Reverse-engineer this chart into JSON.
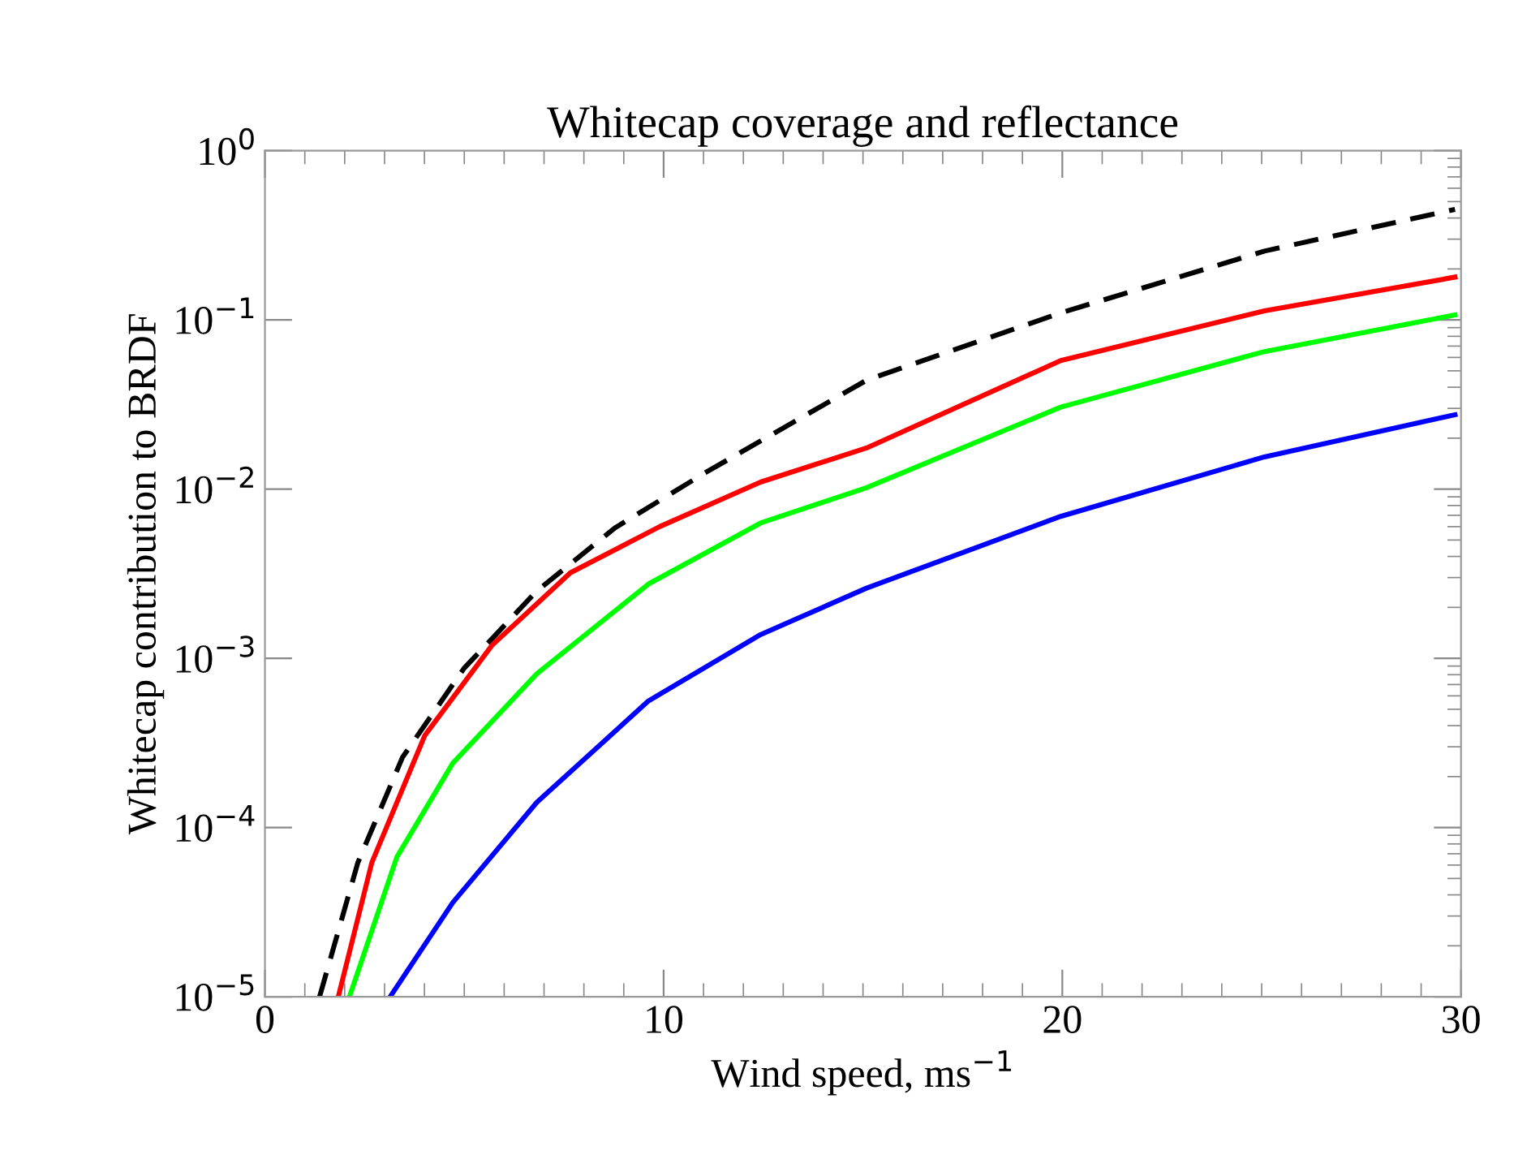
{
  "chart_data": {
    "type": "line",
    "title": "Whitecap coverage and reflectance",
    "xlabel": "Wind speed, ms$^{−1}$",
    "ylabel": "Whitecap contribution to BRDF",
    "log": "y",
    "grid": false,
    "xlim": [
      0,
      30
    ],
    "xticks": [
      0,
      10,
      20,
      30
    ],
    "ylim": [
      1e-05,
      1
    ],
    "yticks": [
      {
        "value": 1e-05,
        "label": "10$^{−5}$"
      },
      {
        "value": 0.0001,
        "label": "10$^{−4}$"
      },
      {
        "value": 0.001,
        "label": "10$^{−3}$"
      },
      {
        "value": 0.01,
        "label": "10$^{−2}$"
      },
      {
        "value": 0.1,
        "label": "10$^{−1}$"
      },
      {
        "value": 1,
        "label": "10$^{0}$"
      }
    ],
    "series": [
      {
        "color": "#000000",
        "line_style": "dashed",
        "x": [
          1.37,
          2.33,
          3.45,
          4.99,
          6.82,
          8.78,
          11.02,
          15.09,
          19.96,
          25.07,
          29.85
        ],
        "values": [
          1e-05,
          6.2e-05,
          0.00026,
          0.00087,
          0.0025,
          0.0059,
          0.0124,
          0.044,
          0.11,
          0.255,
          0.45
        ]
      },
      {
        "color": "#ff0000",
        "line_style": "solid",
        "x": [
          1.84,
          2.68,
          4.01,
          5.69,
          7.66,
          9.9,
          12.43,
          15.09,
          19.96,
          25.07,
          29.85
        ],
        "values": [
          1e-05,
          6.2e-05,
          0.00035,
          0.00119,
          0.0032,
          0.006,
          0.011,
          0.0175,
          0.0575,
          0.113,
          0.179
        ]
      },
      {
        "color": "#00ff00",
        "line_style": "solid",
        "x": [
          2.12,
          3.31,
          4.71,
          6.82,
          9.62,
          12.43,
          15.09,
          19.96,
          25.07,
          29.85
        ],
        "values": [
          1e-05,
          6.7e-05,
          0.00024,
          0.00081,
          0.00275,
          0.0063,
          0.0102,
          0.0305,
          0.065,
          0.107
        ]
      },
      {
        "color": "#0000ff",
        "line_style": "solid",
        "x": [
          3.14,
          4.71,
          6.82,
          9.62,
          12.43,
          15.09,
          19.96,
          25.07,
          29.85
        ],
        "values": [
          1e-05,
          3.6e-05,
          0.000141,
          0.00056,
          0.00138,
          0.0026,
          0.0069,
          0.0155,
          0.0275
        ]
      }
    ]
  }
}
